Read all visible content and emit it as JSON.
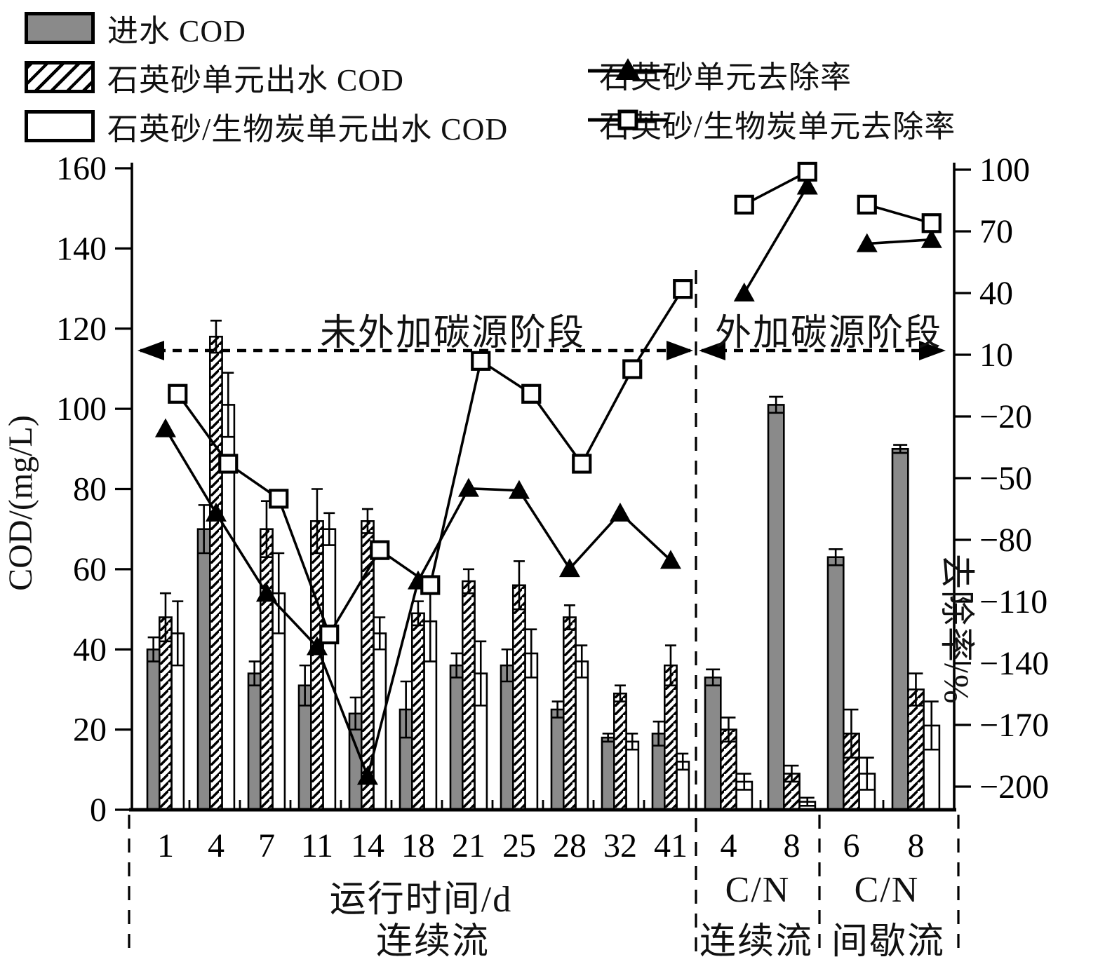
{
  "colors": {
    "bar_gray": "#8a8a8a",
    "ink": "#000000"
  },
  "chart_data": {
    "type": "bar+line",
    "title": "",
    "left_axis": {
      "label": "COD/(mg/L)",
      "range": [
        0,
        160
      ],
      "ticks": [
        160,
        140,
        120,
        100,
        80,
        60,
        40,
        20,
        0
      ]
    },
    "right_axis": {
      "label": "去除率/%",
      "range": [
        -200,
        100
      ],
      "ticks": [
        100,
        70,
        40,
        10,
        -20,
        -50,
        -80,
        -110,
        -140,
        -170,
        -200
      ]
    },
    "categories": [
      "1",
      "4",
      "7",
      "11",
      "14",
      "18",
      "21",
      "25",
      "28",
      "32",
      "41",
      "4",
      "8",
      "6",
      "8"
    ],
    "bar_series": [
      {
        "name": "进水 COD",
        "style": "solid-gray",
        "values": [
          40,
          70,
          34,
          31,
          24,
          25,
          36,
          36,
          25,
          18,
          19,
          33,
          101,
          63,
          90
        ],
        "errors": [
          3,
          6,
          3,
          5,
          4,
          7,
          3,
          4,
          2,
          1,
          3,
          2,
          2,
          2,
          1
        ]
      },
      {
        "name": "石英砂单元出水 COD",
        "style": "hatched",
        "values": [
          48,
          118,
          70,
          72,
          72,
          49,
          57,
          56,
          48,
          29,
          36,
          20,
          9,
          19,
          30
        ],
        "errors": [
          6,
          4,
          7,
          8,
          3,
          3,
          3,
          6,
          3,
          2,
          5,
          3,
          2,
          6,
          4
        ]
      },
      {
        "name": "石英砂/生物炭单元出水 COD",
        "style": "white",
        "values": [
          44,
          101,
          54,
          70,
          44,
          47,
          34,
          39,
          37,
          17,
          12,
          7,
          2,
          9,
          21
        ],
        "errors": [
          8,
          8,
          10,
          4,
          4,
          10,
          8,
          6,
          4,
          2,
          2,
          2,
          1,
          4,
          6
        ]
      }
    ],
    "line_series": [
      {
        "name": "石英砂单元去除率",
        "marker": "triangle",
        "values": [
          -26,
          -67,
          -106,
          -132,
          -195,
          -100,
          -55,
          -56,
          -94,
          -67,
          -90,
          40,
          92,
          64,
          66
        ]
      },
      {
        "name": "石英砂/生物炭单元去除率",
        "marker": "square",
        "values": [
          -9,
          -43,
          -60,
          -126,
          -85,
          -102,
          7,
          -9,
          -43,
          3,
          42,
          83,
          99,
          83,
          74
        ]
      }
    ],
    "segments": [
      [
        0,
        10
      ],
      [
        11,
        12
      ],
      [
        13,
        14
      ]
    ],
    "sections": [
      {
        "label_top": "运行时间/d",
        "label_bottom": "连续流",
        "from": 0,
        "to": 10
      },
      {
        "label_top": "C/N",
        "label_bottom": "连续流",
        "from": 11,
        "to": 12
      },
      {
        "label_top": "C/N",
        "label_bottom": "间歇流",
        "from": 13,
        "to": 14
      }
    ],
    "stage_annotations": [
      {
        "text": "未外加碳源阶段",
        "from": 0,
        "to": 10
      },
      {
        "text": "外加碳源阶段",
        "from": 11,
        "to": 14
      }
    ],
    "legend_order": [
      "进水 COD",
      "石英砂单元出水 COD",
      "石英砂/生物炭单元出水 COD",
      "石英砂单元去除率",
      "石英砂/生物炭单元去除率"
    ]
  }
}
